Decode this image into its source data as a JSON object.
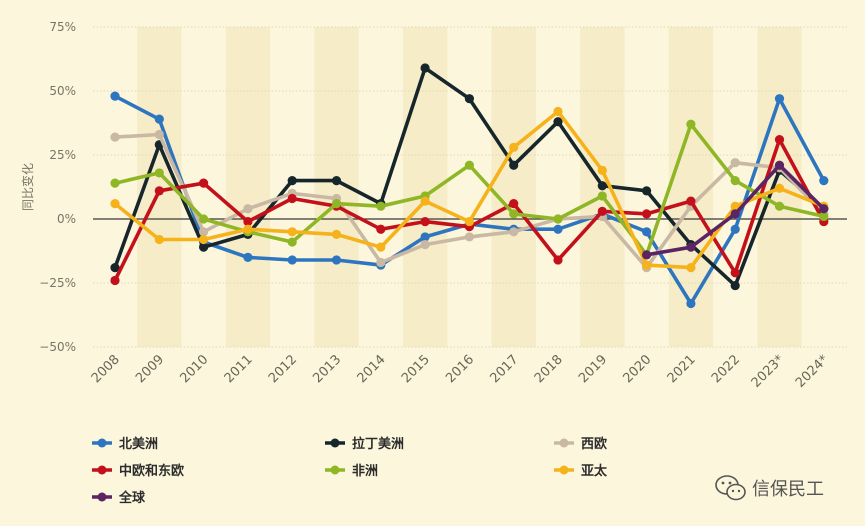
{
  "chart_data": {
    "type": "line",
    "title": "",
    "xlabel": "",
    "ylabel": "同比变化",
    "ylim": [
      -50,
      75
    ],
    "yticks": [
      75,
      50,
      25,
      0,
      -25,
      -50
    ],
    "ytick_labels": [
      "75%",
      "50%",
      "25%",
      "0%",
      "−25%",
      "−50%"
    ],
    "grid": true,
    "legend_position": "bottom",
    "categories": [
      "2008",
      "2009",
      "2010",
      "2011",
      "2012",
      "2013",
      "2014",
      "2015",
      "2016",
      "2017",
      "2018",
      "2019",
      "2020",
      "2021",
      "2022",
      "2023*",
      "2024*"
    ],
    "series": [
      {
        "name": "北美洲",
        "color": "#2e75c0",
        "values": [
          48,
          39,
          -9,
          -15,
          -16,
          -16,
          -18,
          -7,
          -2,
          -4,
          -4,
          2,
          -5,
          -33,
          -4,
          47,
          15
        ]
      },
      {
        "name": "拉丁美洲",
        "color": "#16262b",
        "values": [
          -19,
          29,
          -11,
          -6,
          15,
          15,
          6,
          59,
          47,
          21,
          38,
          13,
          11,
          -10,
          -26,
          19,
          4
        ]
      },
      {
        "name": "西欧",
        "color": "#c9b8a3",
        "values": [
          32,
          33,
          -5,
          4,
          10,
          8,
          -17,
          -10,
          -7,
          -5,
          0,
          1,
          -19,
          5,
          22,
          20,
          2
        ]
      },
      {
        "name": "中欧和东欧",
        "color": "#c3101b",
        "values": [
          -24,
          11,
          14,
          -1,
          8,
          5,
          -4,
          -1,
          -3,
          6,
          -16,
          3,
          2,
          7,
          -21,
          31,
          -1
        ]
      },
      {
        "name": "非洲",
        "color": "#8fb625",
        "values": [
          14,
          18,
          0,
          -5,
          -9,
          6,
          5,
          9,
          21,
          2,
          0,
          9,
          -14,
          37,
          15,
          5,
          1
        ]
      },
      {
        "name": "亚太",
        "color": "#f6b21a",
        "values": [
          6,
          -8,
          -8,
          -4,
          -5,
          -6,
          -11,
          7,
          -1,
          28,
          42,
          19,
          -18,
          -19,
          5,
          12,
          5
        ]
      },
      {
        "name": "全球",
        "color": "#5b2463",
        "values": [
          null,
          null,
          null,
          null,
          null,
          null,
          null,
          null,
          null,
          null,
          null,
          null,
          -14,
          -11,
          2,
          21,
          4
        ]
      }
    ]
  },
  "watermark": {
    "text": "信保民工",
    "icon": "wechat-icon"
  }
}
